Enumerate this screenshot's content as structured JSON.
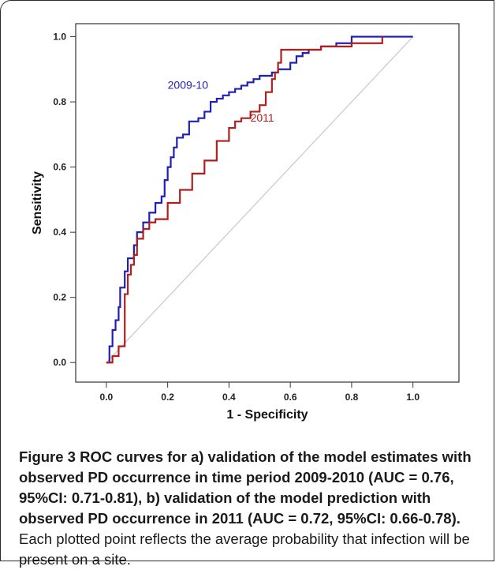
{
  "chart_data": {
    "type": "line",
    "xlabel": "1 - Specificity",
    "ylabel": "Sensitivity",
    "xlim": [
      -0.1,
      1.15
    ],
    "ylim": [
      -0.06,
      1.04
    ],
    "xticks": [
      "0.0",
      "0.2",
      "0.4",
      "0.6",
      "0.8",
      "1.0"
    ],
    "yticks": [
      "0.0",
      "0.2",
      "0.4",
      "0.6",
      "0.8",
      "1.0"
    ],
    "grid": false,
    "legend": "none",
    "reference_line": {
      "x": [
        0.0,
        1.0
      ],
      "y": [
        0.0,
        1.0
      ],
      "color": "#c8c8c8"
    },
    "series": [
      {
        "name": "2009-10",
        "color": "#1f1fb4",
        "x": [
          0.0,
          0.01,
          0.02,
          0.03,
          0.04,
          0.045,
          0.06,
          0.07,
          0.09,
          0.1,
          0.12,
          0.14,
          0.16,
          0.18,
          0.19,
          0.2,
          0.21,
          0.22,
          0.23,
          0.25,
          0.27,
          0.3,
          0.32,
          0.34,
          0.36,
          0.38,
          0.4,
          0.42,
          0.44,
          0.46,
          0.48,
          0.5,
          0.52,
          0.54,
          0.56,
          0.58,
          0.6,
          0.62,
          0.64,
          0.66,
          0.7,
          0.75,
          0.8,
          0.85,
          0.9,
          1.0
        ],
        "y": [
          0.0,
          0.05,
          0.1,
          0.13,
          0.17,
          0.23,
          0.28,
          0.32,
          0.36,
          0.4,
          0.43,
          0.46,
          0.49,
          0.51,
          0.56,
          0.6,
          0.63,
          0.66,
          0.69,
          0.7,
          0.74,
          0.75,
          0.77,
          0.8,
          0.81,
          0.82,
          0.83,
          0.84,
          0.85,
          0.86,
          0.87,
          0.88,
          0.88,
          0.89,
          0.9,
          0.9,
          0.92,
          0.94,
          0.95,
          0.96,
          0.97,
          0.98,
          1.0,
          1.0,
          1.0,
          1.0
        ]
      },
      {
        "name": "2011",
        "color": "#b01e1e",
        "x": [
          0.0,
          0.02,
          0.04,
          0.06,
          0.07,
          0.08,
          0.09,
          0.1,
          0.12,
          0.14,
          0.16,
          0.2,
          0.24,
          0.28,
          0.32,
          0.36,
          0.4,
          0.42,
          0.44,
          0.47,
          0.5,
          0.52,
          0.54,
          0.55,
          0.56,
          0.57,
          0.6,
          0.7,
          0.8,
          0.9,
          0.9
        ],
        "y": [
          0.0,
          0.02,
          0.05,
          0.21,
          0.27,
          0.3,
          0.33,
          0.38,
          0.41,
          0.43,
          0.44,
          0.49,
          0.53,
          0.58,
          0.62,
          0.68,
          0.72,
          0.74,
          0.75,
          0.77,
          0.79,
          0.83,
          0.87,
          0.89,
          0.92,
          0.96,
          0.96,
          0.97,
          0.98,
          0.98,
          1.0
        ]
      }
    ],
    "annotations": [
      {
        "text": "2009-10",
        "x": 0.2,
        "y": 0.84,
        "color": "#1f1fb4"
      },
      {
        "text": "2011",
        "x": 0.47,
        "y": 0.74,
        "color": "#b01e1e"
      }
    ]
  },
  "caption": {
    "bold": "Figure 3 ROC curves for a) validation of the model estimates with observed PD occurrence in time period 2009-2010 (AUC = 0.76, 95%CI: 0.71-0.81), b) validation of the model prediction with observed PD occurrence in 2011 (AUC = 0.72, 95%CI: 0.66-0.78).",
    "normal": " Each plotted point reflects the average probability that infection will be present on a site."
  }
}
